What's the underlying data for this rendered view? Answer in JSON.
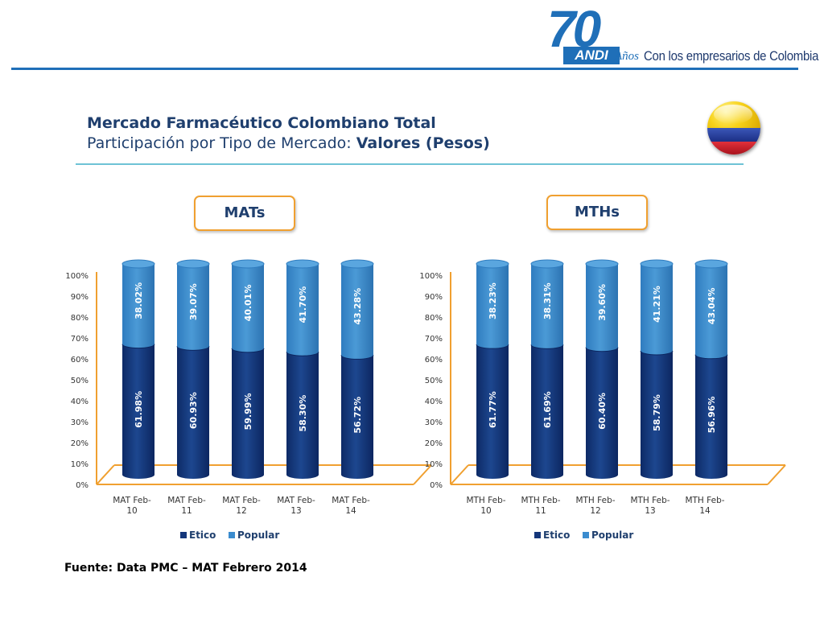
{
  "header": {
    "logo_number": "70",
    "logo_org": "ANDI",
    "logo_anos": "Años",
    "tagline": "Con los empresarios de Colombia"
  },
  "title": {
    "line1": "Mercado Farmacéutico Colombiano Total",
    "line2_prefix": "Participación por Tipo de Mercado: ",
    "line2_bold": "Valores (Pesos)"
  },
  "source": "Fuente: Data PMC – MAT Febrero 2014",
  "colors": {
    "etico": "#14367a",
    "popular": "#3b8ccf",
    "axis": "#f0a030",
    "title": "#1f3f6e"
  },
  "chart_data": [
    {
      "type": "bar",
      "stacked": true,
      "title": "MATs",
      "categories": [
        "MAT Feb-10",
        "MAT Feb-11",
        "MAT Feb-12",
        "MAT Feb-13",
        "MAT Feb-14"
      ],
      "category_lines": [
        [
          "MAT Feb-",
          "10"
        ],
        [
          "MAT Feb-",
          "11"
        ],
        [
          "MAT Feb-",
          "12"
        ],
        [
          "MAT Feb-",
          "13"
        ],
        [
          "MAT Feb-",
          "14"
        ]
      ],
      "series": [
        {
          "name": "Etico",
          "values": [
            61.98,
            60.93,
            59.99,
            58.3,
            56.72
          ],
          "labels": [
            "61.98%",
            "60.93%",
            "59.99%",
            "58.30%",
            "56.72%"
          ]
        },
        {
          "name": "Popular",
          "values": [
            38.02,
            39.07,
            40.01,
            41.7,
            43.28
          ],
          "labels": [
            "38.02%",
            "39.07%",
            "40.01%",
            "41.70%",
            "43.28%"
          ]
        }
      ],
      "yticks": [
        "0%",
        "10%",
        "20%",
        "30%",
        "40%",
        "50%",
        "60%",
        "70%",
        "80%",
        "90%",
        "100%"
      ],
      "ylim": [
        0,
        100
      ],
      "legend": "bottom"
    },
    {
      "type": "bar",
      "stacked": true,
      "title": "MTHs",
      "categories": [
        "MTH Feb-10",
        "MTH Feb-11",
        "MTH Feb-12",
        "MTH Feb-13",
        "MTH Feb-14"
      ],
      "category_lines": [
        [
          "MTH Feb-",
          "10"
        ],
        [
          "MTH Feb-",
          "11"
        ],
        [
          "MTH Feb-",
          "12"
        ],
        [
          "MTH Feb-",
          "13"
        ],
        [
          "MTH Feb-",
          "14"
        ]
      ],
      "series": [
        {
          "name": "Etico",
          "values": [
            61.77,
            61.69,
            60.4,
            58.79,
            56.96
          ],
          "labels": [
            "61.77%",
            "61.69%",
            "60.40%",
            "58.79%",
            "56.96%"
          ]
        },
        {
          "name": "Popular",
          "values": [
            38.23,
            38.31,
            39.6,
            41.21,
            43.04
          ],
          "labels": [
            "38.23%",
            "38.31%",
            "39.60%",
            "41.21%",
            "43.04%"
          ]
        }
      ],
      "yticks": [
        "0%",
        "10%",
        "20%",
        "30%",
        "40%",
        "50%",
        "60%",
        "70%",
        "80%",
        "90%",
        "100%"
      ],
      "ylim": [
        0,
        100
      ],
      "legend": "bottom"
    }
  ]
}
